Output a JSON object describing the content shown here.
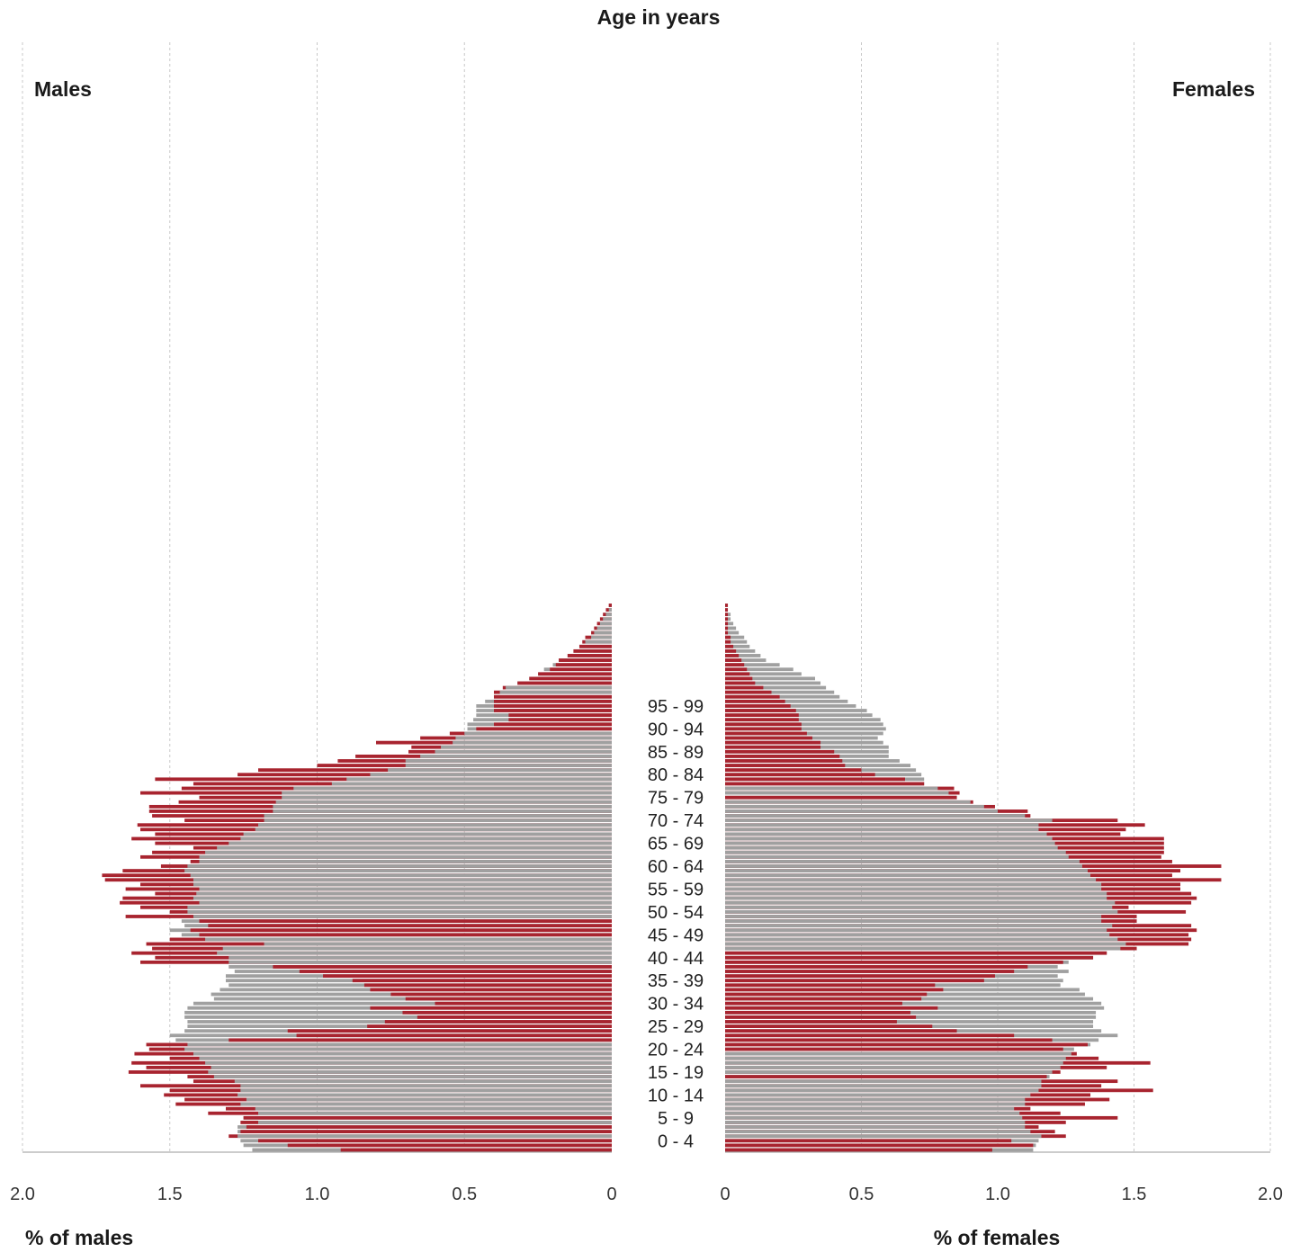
{
  "chart_data": {
    "type": "bar",
    "orientation": "horizontal",
    "title": "Age in years",
    "left_panel_title": "Males",
    "right_panel_title": "Females",
    "xlabel_left": "% of males",
    "xlabel_right": "% of females",
    "xlim": [
      0,
      2.0
    ],
    "xticks": [
      "0",
      "0.5",
      "1.0",
      "1.5",
      "2.0"
    ],
    "grid": "vertical dashed",
    "age_labels": [
      "0 -  4",
      "5 -  9",
      "10 - 14",
      "15 - 19",
      "20 - 24",
      "25 - 29",
      "30 - 34",
      "35 - 39",
      "40 - 44",
      "45 - 49",
      "50 - 54",
      "55 - 59",
      "60 - 64",
      "65 - 69",
      "70 - 74",
      "75 - 79",
      "80 - 84",
      "85 - 89",
      "90 - 94",
      "95 - 99"
    ],
    "series_colors": {
      "red": "#a8242f",
      "grey": "#a0a0a0"
    },
    "males": {
      "red": [
        0.92,
        1.1,
        1.2,
        1.3,
        1.26,
        1.24,
        1.26,
        1.25,
        1.37,
        1.31,
        1.48,
        1.45,
        1.52,
        1.5,
        1.6,
        1.42,
        1.44,
        1.64,
        1.58,
        1.63,
        1.5,
        1.62,
        1.57,
        1.58,
        1.3,
        1.07,
        1.1,
        0.83,
        0.77,
        0.66,
        0.71,
        0.82,
        0.6,
        0.7,
        0.75,
        0.82,
        0.84,
        0.88,
        0.98,
        1.06,
        1.15,
        1.6,
        1.55,
        1.63,
        1.56,
        1.58,
        1.5,
        1.4,
        1.43,
        1.37,
        1.4,
        1.65,
        1.5,
        1.6,
        1.67,
        1.66,
        1.55,
        1.65,
        1.6,
        1.72,
        1.73,
        1.66,
        1.53,
        1.43,
        1.6,
        1.56,
        1.42,
        1.55,
        1.63,
        1.55,
        1.6,
        1.61,
        1.45,
        1.56,
        1.57,
        1.57,
        1.47,
        1.4,
        1.6,
        1.46,
        1.42,
        1.55,
        1.27,
        1.2,
        1.0,
        0.93,
        0.87,
        0.69,
        0.68,
        0.8,
        0.65,
        0.55,
        0.46,
        0.4,
        0.35,
        0.35,
        0.4,
        0.4,
        0.4,
        0.4,
        0.4,
        0.37,
        0.32,
        0.28,
        0.25,
        0.21,
        0.19,
        0.18,
        0.15,
        0.13,
        0.11,
        0.1,
        0.09,
        0.07,
        0.06,
        0.05,
        0.04,
        0.03,
        0.02,
        0.01
      ],
      "grey": [
        1.22,
        1.25,
        1.26,
        1.27,
        1.27,
        1.27,
        1.2,
        1.25,
        1.2,
        1.21,
        1.26,
        1.24,
        1.27,
        1.26,
        1.26,
        1.28,
        1.35,
        1.37,
        1.36,
        1.38,
        1.4,
        1.42,
        1.45,
        1.44,
        1.48,
        1.5,
        1.45,
        1.44,
        1.44,
        1.45,
        1.45,
        1.44,
        1.42,
        1.35,
        1.36,
        1.33,
        1.3,
        1.31,
        1.31,
        1.28,
        1.3,
        1.3,
        1.3,
        1.34,
        1.32,
        1.18,
        1.38,
        1.46,
        1.5,
        1.45,
        1.46,
        1.42,
        1.44,
        1.44,
        1.4,
        1.42,
        1.41,
        1.4,
        1.42,
        1.42,
        1.43,
        1.45,
        1.44,
        1.4,
        1.4,
        1.38,
        1.34,
        1.3,
        1.26,
        1.25,
        1.21,
        1.2,
        1.18,
        1.18,
        1.15,
        1.15,
        1.14,
        1.12,
        1.12,
        1.08,
        0.95,
        0.9,
        0.82,
        0.76,
        0.7,
        0.7,
        0.65,
        0.6,
        0.58,
        0.54,
        0.53,
        0.5,
        0.49,
        0.49,
        0.47,
        0.46,
        0.46,
        0.46,
        0.43,
        0.4,
        0.38,
        0.36,
        0.32,
        0.28,
        0.25,
        0.23,
        0.2,
        0.18,
        0.15,
        0.13,
        0.11,
        0.09,
        0.07,
        0.06,
        0.05,
        0.04,
        0.03,
        0.02,
        0.01,
        0.01
      ]
    },
    "females": {
      "red": [
        0.98,
        1.13,
        1.05,
        1.25,
        1.21,
        1.15,
        1.25,
        1.44,
        1.23,
        1.12,
        1.32,
        1.41,
        1.34,
        1.57,
        1.38,
        1.44,
        1.18,
        1.23,
        1.4,
        1.56,
        1.37,
        1.29,
        1.24,
        1.33,
        1.2,
        1.06,
        0.85,
        0.76,
        0.63,
        0.7,
        0.68,
        0.78,
        0.65,
        0.72,
        0.74,
        0.8,
        0.77,
        0.95,
        0.99,
        1.06,
        1.11,
        1.24,
        1.35,
        1.4,
        1.51,
        1.7,
        1.71,
        1.7,
        1.73,
        1.71,
        1.51,
        1.51,
        1.69,
        1.48,
        1.71,
        1.73,
        1.71,
        1.67,
        1.67,
        1.82,
        1.64,
        1.67,
        1.82,
        1.64,
        1.6,
        1.61,
        1.61,
        1.61,
        1.61,
        1.45,
        1.47,
        1.54,
        1.44,
        1.12,
        1.11,
        0.99,
        0.91,
        0.85,
        0.86,
        0.84,
        0.73,
        0.66,
        0.55,
        0.5,
        0.44,
        0.43,
        0.42,
        0.4,
        0.35,
        0.35,
        0.32,
        0.3,
        0.28,
        0.28,
        0.27,
        0.27,
        0.26,
        0.24,
        0.22,
        0.2,
        0.17,
        0.14,
        0.11,
        0.1,
        0.09,
        0.08,
        0.07,
        0.06,
        0.05,
        0.04,
        0.03,
        0.02,
        0.02,
        0.01,
        0.01,
        0.01,
        0.01,
        0.01,
        0.01,
        0.01
      ],
      "grey": [
        1.13,
        1.14,
        1.15,
        1.16,
        1.12,
        1.1,
        1.1,
        1.09,
        1.08,
        1.06,
        1.1,
        1.1,
        1.12,
        1.15,
        1.16,
        1.16,
        1.19,
        1.2,
        1.23,
        1.24,
        1.25,
        1.27,
        1.28,
        1.34,
        1.37,
        1.44,
        1.38,
        1.35,
        1.35,
        1.36,
        1.36,
        1.39,
        1.38,
        1.35,
        1.32,
        1.3,
        1.23,
        1.24,
        1.22,
        1.26,
        1.22,
        1.26,
        1.35,
        1.4,
        1.45,
        1.47,
        1.44,
        1.41,
        1.4,
        1.42,
        1.38,
        1.38,
        1.44,
        1.42,
        1.43,
        1.4,
        1.4,
        1.38,
        1.38,
        1.36,
        1.34,
        1.33,
        1.31,
        1.3,
        1.26,
        1.25,
        1.22,
        1.21,
        1.2,
        1.18,
        1.15,
        1.15,
        1.2,
        1.1,
        1.0,
        0.95,
        0.9,
        0.85,
        0.82,
        0.78,
        0.73,
        0.73,
        0.72,
        0.7,
        0.68,
        0.64,
        0.6,
        0.6,
        0.6,
        0.58,
        0.56,
        0.58,
        0.59,
        0.58,
        0.57,
        0.54,
        0.52,
        0.48,
        0.45,
        0.42,
        0.4,
        0.37,
        0.35,
        0.33,
        0.28,
        0.25,
        0.2,
        0.15,
        0.13,
        0.11,
        0.09,
        0.08,
        0.07,
        0.05,
        0.04,
        0.03,
        0.02,
        0.02,
        0.01,
        0.01
      ]
    }
  }
}
